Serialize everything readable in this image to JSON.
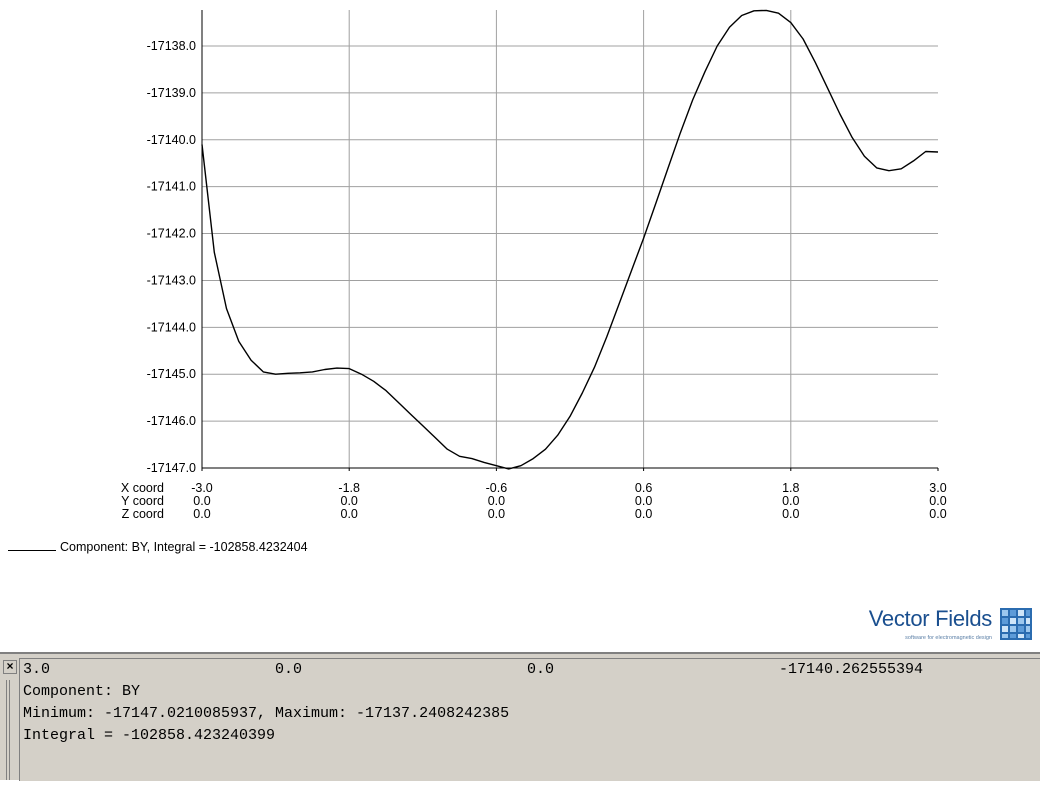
{
  "chart_data": {
    "type": "line",
    "title": "",
    "xlabel": "",
    "ylabel": "",
    "ylim": [
      -17147.0,
      -17137.0
    ],
    "xlim": [
      -3.0,
      3.0
    ],
    "y_ticks": [
      "-17138.0",
      "-17139.0",
      "-17140.0",
      "-17141.0",
      "-17142.0",
      "-17143.0",
      "-17144.0",
      "-17145.0",
      "-17146.0",
      "-17147.0"
    ],
    "y_tick_values": [
      -17138.0,
      -17139.0,
      -17140.0,
      -17141.0,
      -17142.0,
      -17143.0,
      -17144.0,
      -17145.0,
      -17146.0,
      -17147.0
    ],
    "x_tick_values": [
      -3.0,
      -1.8,
      -0.6,
      0.6,
      1.8,
      3.0
    ],
    "coord_rows": [
      {
        "label": "X coord",
        "values": [
          "-3.0",
          "-1.8",
          "-0.6",
          "0.6",
          "1.8",
          "3.0"
        ]
      },
      {
        "label": "Y coord",
        "values": [
          "0.0",
          "0.0",
          "0.0",
          "0.0",
          "0.0",
          "0.0"
        ]
      },
      {
        "label": "Z coord",
        "values": [
          "0.0",
          "0.0",
          "0.0",
          "0.0",
          "0.0",
          "0.0"
        ]
      }
    ],
    "grid": true,
    "series": [
      {
        "name": "Component: BY, Integral = -102858.4232404",
        "x": [
          -3.0,
          -2.9,
          -2.8,
          -2.7,
          -2.6,
          -2.5,
          -2.4,
          -2.3,
          -2.2,
          -2.1,
          -2.0,
          -1.9,
          -1.8,
          -1.7,
          -1.6,
          -1.5,
          -1.4,
          -1.3,
          -1.2,
          -1.1,
          -1.0,
          -0.9,
          -0.8,
          -0.7,
          -0.6,
          -0.5,
          -0.4,
          -0.3,
          -0.2,
          -0.1,
          0.0,
          0.1,
          0.2,
          0.3,
          0.4,
          0.5,
          0.6,
          0.7,
          0.8,
          0.9,
          1.0,
          1.1,
          1.2,
          1.3,
          1.4,
          1.5,
          1.6,
          1.7,
          1.8,
          1.9,
          2.0,
          2.1,
          2.2,
          2.3,
          2.4,
          2.5,
          2.6,
          2.7,
          2.8,
          2.9,
          3.0
        ],
        "y": [
          -17140.1,
          -17142.4,
          -17143.6,
          -17144.3,
          -17144.7,
          -17144.95,
          -17145.0,
          -17144.98,
          -17144.97,
          -17144.95,
          -17144.9,
          -17144.87,
          -17144.88,
          -17145.0,
          -17145.15,
          -17145.35,
          -17145.6,
          -17145.85,
          -17146.1,
          -17146.35,
          -17146.6,
          -17146.75,
          -17146.8,
          -17146.88,
          -17146.95,
          -17147.02,
          -17146.95,
          -17146.8,
          -17146.6,
          -17146.3,
          -17145.9,
          -17145.4,
          -17144.85,
          -17144.2,
          -17143.5,
          -17142.8,
          -17142.1,
          -17141.35,
          -17140.6,
          -17139.85,
          -17139.15,
          -17138.55,
          -17138.0,
          -17137.6,
          -17137.35,
          -17137.25,
          -17137.24,
          -17137.3,
          -17137.5,
          -17137.85,
          -17138.35,
          -17138.9,
          -17139.45,
          -17139.95,
          -17140.35,
          -17140.6,
          -17140.66,
          -17140.62,
          -17140.45,
          -17140.25,
          -17140.26
        ]
      }
    ]
  },
  "legend": {
    "label": "Component: BY, Integral = -102858.4232404"
  },
  "logo": {
    "text": "Vector Fields",
    "tagline": "software for electromagnetic design"
  },
  "console": {
    "close_glyph": "×",
    "line1": {
      "x": "3.0",
      "y": "0.0",
      "z": "0.0",
      "value": "-17140.262555394"
    },
    "line2": "Component: BY",
    "line3": "Minimum: -17147.0210085937, Maximum: -17137.2408242385",
    "line4": "Integral = -102858.423240399"
  }
}
